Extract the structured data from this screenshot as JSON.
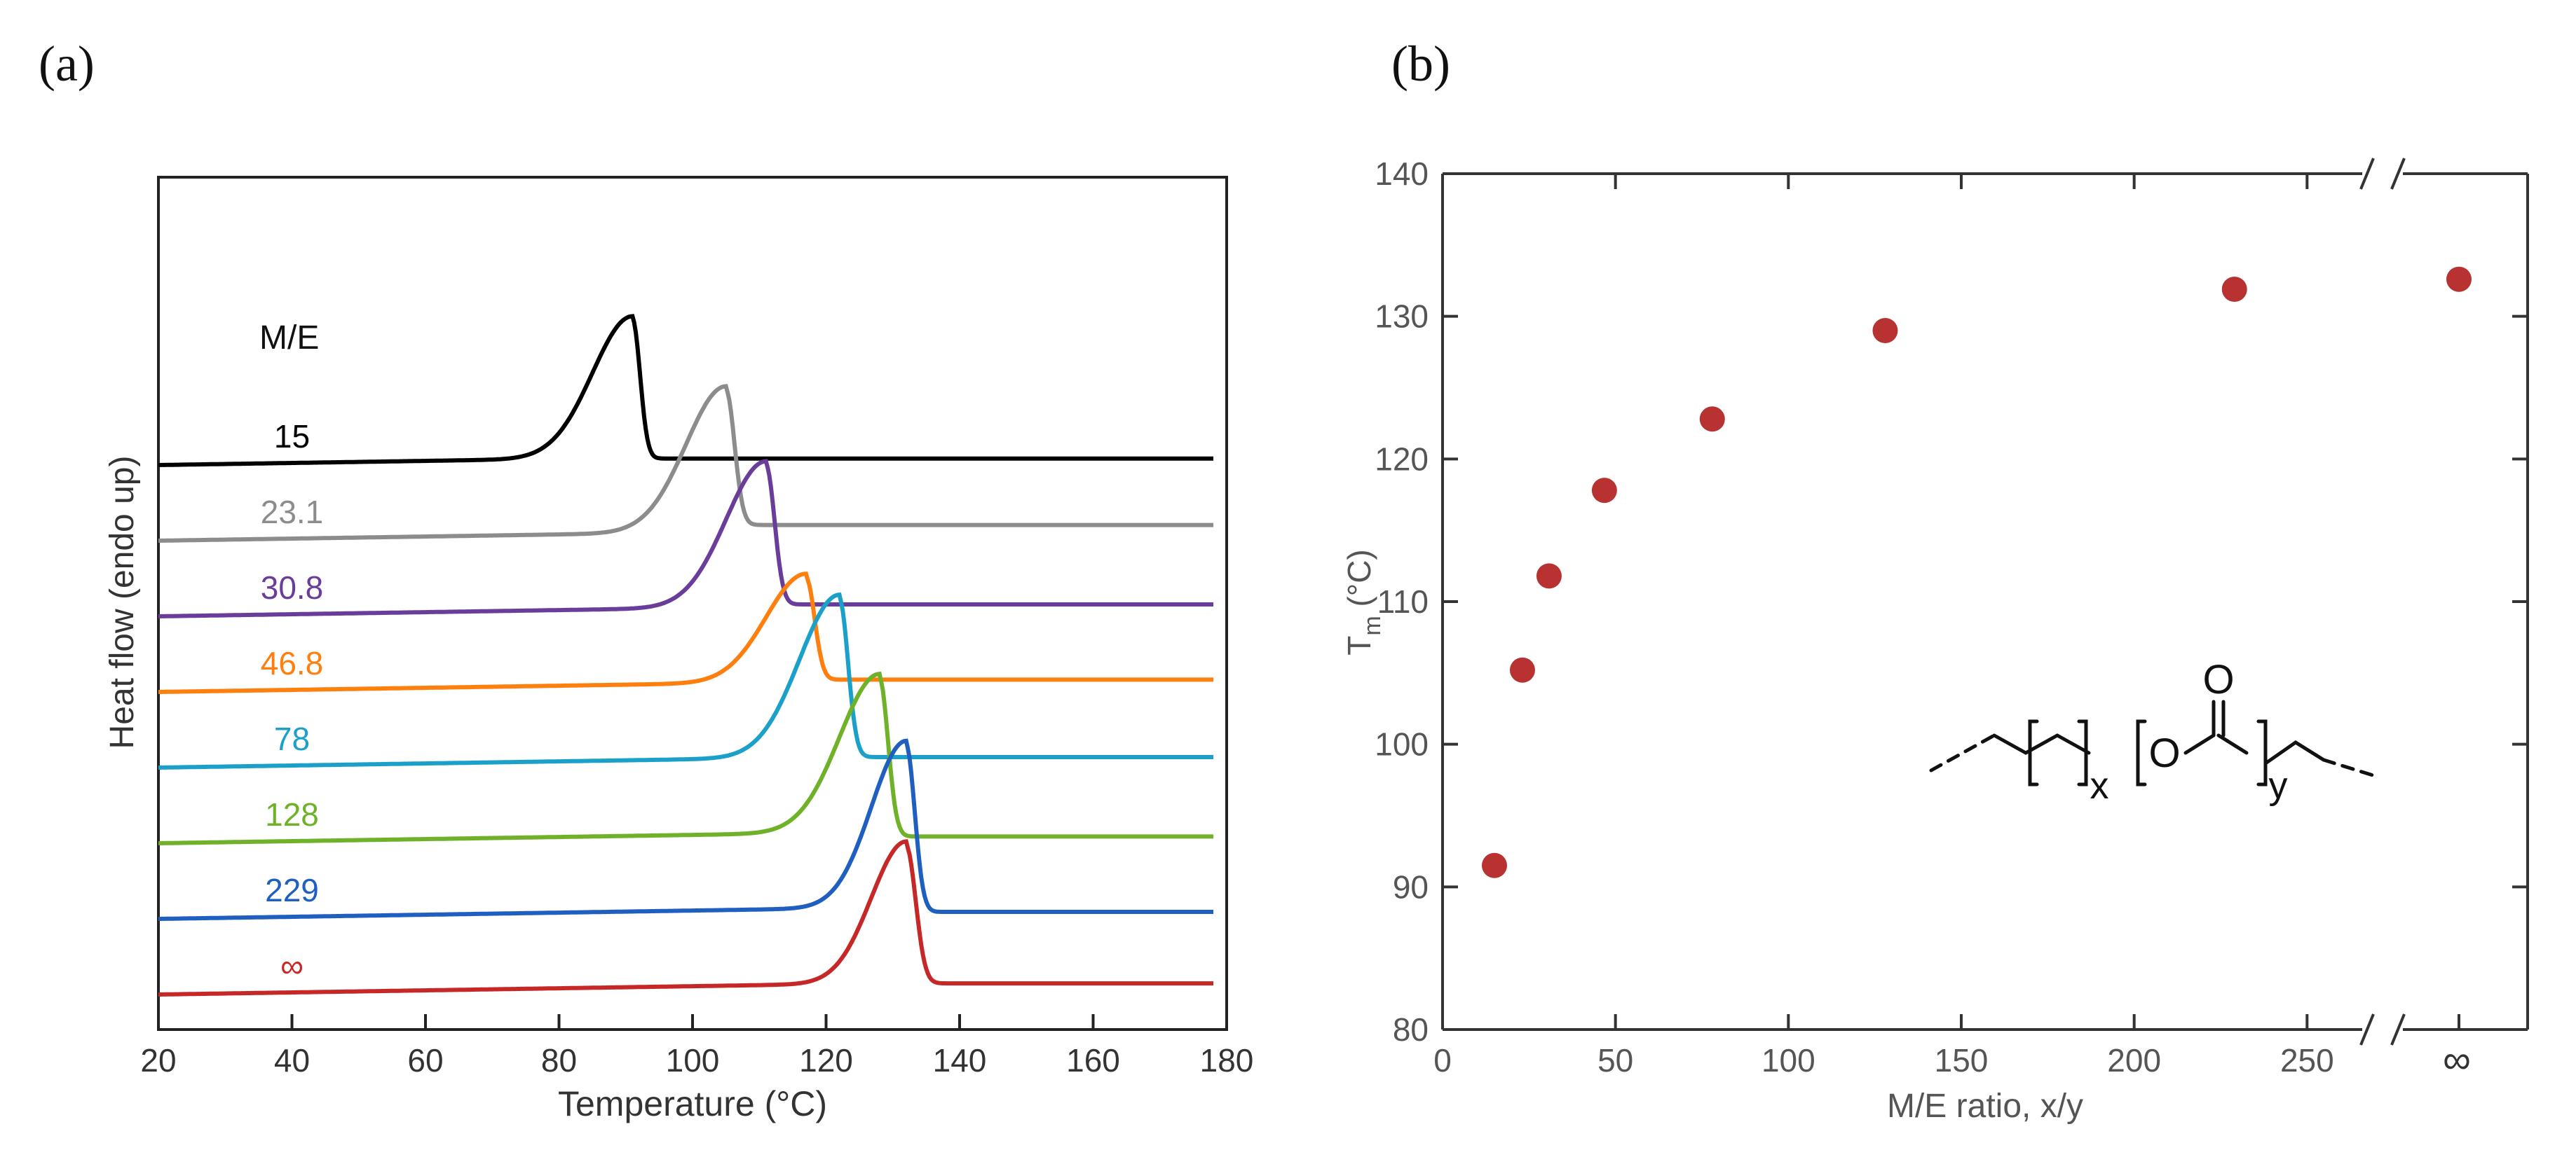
{
  "panel_a_label": "(a)",
  "panel_b_label": "(b)",
  "chart_data": [
    {
      "type": "line",
      "xlabel": "Temperature (°C)",
      "ylabel": "Heat flow (endo up)",
      "xlim": [
        20,
        180
      ],
      "x_ticks": [
        "20",
        "40",
        "60",
        "80",
        "100",
        "120",
        "140",
        "160",
        "180"
      ],
      "y_ticks": [],
      "legend_title": "M/E",
      "grid": false,
      "series": [
        {
          "name": "15",
          "color": "#000000",
          "baseline_offset": 7.0,
          "peak_T": 91,
          "peak_height": 3.4,
          "onset_width": 8,
          "drop_width": 1.6,
          "post_level": 0.05
        },
        {
          "name": "23.1",
          "color": "#8c8c8c",
          "baseline_offset": 6.0,
          "peak_T": 105,
          "peak_height": 3.5,
          "onset_width": 8,
          "drop_width": 1.8,
          "post_level": 0.25
        },
        {
          "name": "30.8",
          "color": "#6a3d9a",
          "baseline_offset": 5.0,
          "peak_T": 111,
          "peak_height": 3.5,
          "onset_width": 8,
          "drop_width": 1.8,
          "post_level": 0.15
        },
        {
          "name": "46.8",
          "color": "#ff7f0e",
          "baseline_offset": 4.0,
          "peak_T": 117,
          "peak_height": 2.6,
          "onset_width": 8,
          "drop_width": 1.8,
          "post_level": 0.15
        },
        {
          "name": "78",
          "color": "#1ba1c9",
          "baseline_offset": 3.0,
          "peak_T": 122,
          "peak_height": 3.9,
          "onset_width": 8,
          "drop_width": 1.8,
          "post_level": 0.1
        },
        {
          "name": "128",
          "color": "#6fb22a",
          "baseline_offset": 2.0,
          "peak_T": 128,
          "peak_height": 3.8,
          "onset_width": 8,
          "drop_width": 1.8,
          "post_level": 0.0
        },
        {
          "name": "229",
          "color": "#1f5fbf",
          "baseline_offset": 1.0,
          "peak_T": 132,
          "peak_height": 4.0,
          "onset_width": 7,
          "drop_width": 1.8,
          "post_level": 0.0
        },
        {
          "name": "∞",
          "color": "#c62828",
          "baseline_offset": 0.0,
          "peak_T": 132,
          "peak_height": 3.4,
          "onset_width": 7,
          "drop_width": 2.0,
          "post_level": 0.1
        }
      ]
    },
    {
      "type": "scatter",
      "xlabel": "M/E ratio, x/y",
      "ylabel": "T",
      "ylabel_sub": "m",
      "ylabel_unit": " (°C)",
      "xlim": [
        0,
        270
      ],
      "ylim": [
        80,
        140
      ],
      "x_ticks": [
        "0",
        "50",
        "100",
        "150",
        "200",
        "250"
      ],
      "x_break_label": "∞",
      "y_ticks": [
        "80",
        "90",
        "100",
        "110",
        "120",
        "130",
        "140"
      ],
      "grid": false,
      "point_color": "#b83232",
      "points": [
        {
          "x": 15,
          "y": 91.5
        },
        {
          "x": 23.1,
          "y": 105.2
        },
        {
          "x": 30.8,
          "y": 111.8
        },
        {
          "x": 46.8,
          "y": 117.8
        },
        {
          "x": 78,
          "y": 122.8
        },
        {
          "x": 128,
          "y": 129.0
        },
        {
          "x": 229,
          "y": 131.9
        },
        {
          "x": "∞",
          "y": 132.6
        }
      ],
      "structure": {
        "carbonyl_O": "O",
        "ester_O": "O",
        "sub_x": "x",
        "sub_y": "y"
      }
    }
  ]
}
